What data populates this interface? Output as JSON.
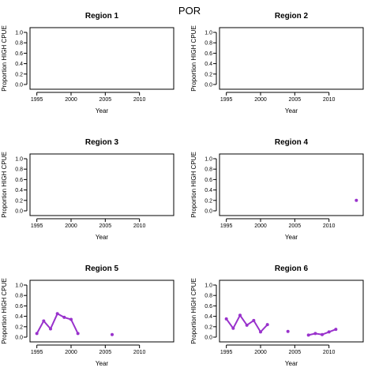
{
  "figure_title": "POR",
  "chart_data": [
    {
      "type": "line",
      "title": "Region 1",
      "xlabel": "Year",
      "ylabel": "Proportion HIGH CPUE",
      "xlim": [
        1994,
        2015
      ],
      "ylim": [
        0,
        1
      ],
      "x_ticks": [
        "1995",
        "2000",
        "2005",
        "2010"
      ],
      "y_ticks": [
        "0.0",
        "0.2",
        "0.4",
        "0.6",
        "0.8",
        "1.0"
      ],
      "series": [
        {
          "color": "#9932CC",
          "segments": []
        }
      ]
    },
    {
      "type": "line",
      "title": "Region 2",
      "xlabel": "Year",
      "ylabel": "Proportion HIGH CPUE",
      "xlim": [
        1994,
        2015
      ],
      "ylim": [
        0,
        1
      ],
      "x_ticks": [
        "1995",
        "2000",
        "2005",
        "2010"
      ],
      "y_ticks": [
        "0.0",
        "0.2",
        "0.4",
        "0.6",
        "0.8",
        "1.0"
      ],
      "series": [
        {
          "color": "#9932CC",
          "segments": []
        }
      ]
    },
    {
      "type": "line",
      "title": "Region 3",
      "xlabel": "Year",
      "ylabel": "Proportion HIGH CPUE",
      "xlim": [
        1994,
        2015
      ],
      "ylim": [
        0,
        1
      ],
      "x_ticks": [
        "1995",
        "2000",
        "2005",
        "2010"
      ],
      "y_ticks": [
        "0.0",
        "0.2",
        "0.4",
        "0.6",
        "0.8",
        "1.0"
      ],
      "series": [
        {
          "color": "#9932CC",
          "segments": []
        }
      ]
    },
    {
      "type": "line",
      "title": "Region 4",
      "xlabel": "Year",
      "ylabel": "Proportion HIGH CPUE",
      "xlim": [
        1994,
        2015
      ],
      "ylim": [
        0,
        1
      ],
      "x_ticks": [
        "1995",
        "2000",
        "2005",
        "2010"
      ],
      "y_ticks": [
        "0.0",
        "0.2",
        "0.4",
        "0.6",
        "0.8",
        "1.0"
      ],
      "series": [
        {
          "color": "#9932CC",
          "segments": [
            [
              [
                2014,
                0.2
              ]
            ]
          ]
        }
      ]
    },
    {
      "type": "line",
      "title": "Region 5",
      "xlabel": "Year",
      "ylabel": "Proportion HIGH CPUE",
      "xlim": [
        1994,
        2015
      ],
      "ylim": [
        0,
        1
      ],
      "x_ticks": [
        "1995",
        "2000",
        "2005",
        "2010"
      ],
      "y_ticks": [
        "0.0",
        "0.2",
        "0.4",
        "0.6",
        "0.8",
        "1.0"
      ],
      "series": [
        {
          "color": "#9932CC",
          "segments": [
            [
              [
                1995,
                0.07
              ],
              [
                1996,
                0.31
              ],
              [
                1997,
                0.16
              ],
              [
                1998,
                0.45
              ],
              [
                1999,
                0.38
              ],
              [
                2000,
                0.34
              ],
              [
                2001,
                0.07
              ]
            ],
            [
              [
                2006,
                0.05
              ]
            ]
          ]
        }
      ]
    },
    {
      "type": "line",
      "title": "Region 6",
      "xlabel": "Year",
      "ylabel": "Proportion HIGH CPUE",
      "xlim": [
        1994,
        2015
      ],
      "ylim": [
        0,
        1
      ],
      "x_ticks": [
        "1995",
        "2000",
        "2005",
        "2010"
      ],
      "y_ticks": [
        "0.0",
        "0.2",
        "0.4",
        "0.6",
        "0.8",
        "1.0"
      ],
      "series": [
        {
          "color": "#9932CC",
          "segments": [
            [
              [
                1995,
                0.35
              ],
              [
                1996,
                0.17
              ],
              [
                1997,
                0.42
              ],
              [
                1998,
                0.23
              ],
              [
                1999,
                0.32
              ],
              [
                2000,
                0.1
              ],
              [
                2001,
                0.24
              ]
            ],
            [
              [
                2004,
                0.11
              ]
            ],
            [
              [
                2007,
                0.04
              ],
              [
                2008,
                0.07
              ],
              [
                2009,
                0.05
              ],
              [
                2010,
                0.1
              ],
              [
                2011,
                0.15
              ]
            ]
          ]
        }
      ]
    }
  ]
}
